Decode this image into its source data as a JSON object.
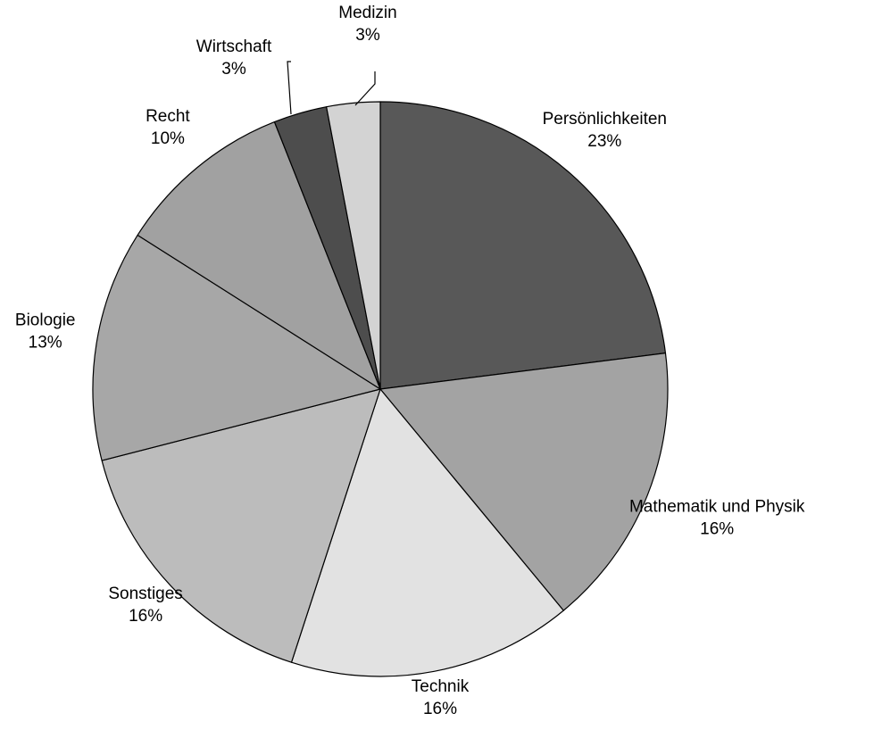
{
  "chart_data": {
    "type": "pie",
    "title": "",
    "start": "12 o'clock",
    "direction": "clockwise",
    "slices": [
      {
        "name": "Persönlichkeiten",
        "value": 23,
        "label": "23%",
        "color": "#585858"
      },
      {
        "name": "Mathematik und Physik",
        "value": 16,
        "label": "16%",
        "color": "#a3a3a3"
      },
      {
        "name": "Technik",
        "value": 16,
        "label": "16%",
        "color": "#e2e2e2"
      },
      {
        "name": "Sonstiges",
        "value": 16,
        "label": "16%",
        "color": "#bcbcbc"
      },
      {
        "name": "Biologie",
        "value": 13,
        "label": "13%",
        "color": "#a7a7a7"
      },
      {
        "name": "Recht",
        "value": 10,
        "label": "10%",
        "color": "#a1a1a1"
      },
      {
        "name": "Wirtschaft",
        "value": 3,
        "label": "3%",
        "color": "#4d4d4d"
      },
      {
        "name": "Medizin",
        "value": 3,
        "label": "3%",
        "color": "#d3d3d3"
      }
    ]
  }
}
